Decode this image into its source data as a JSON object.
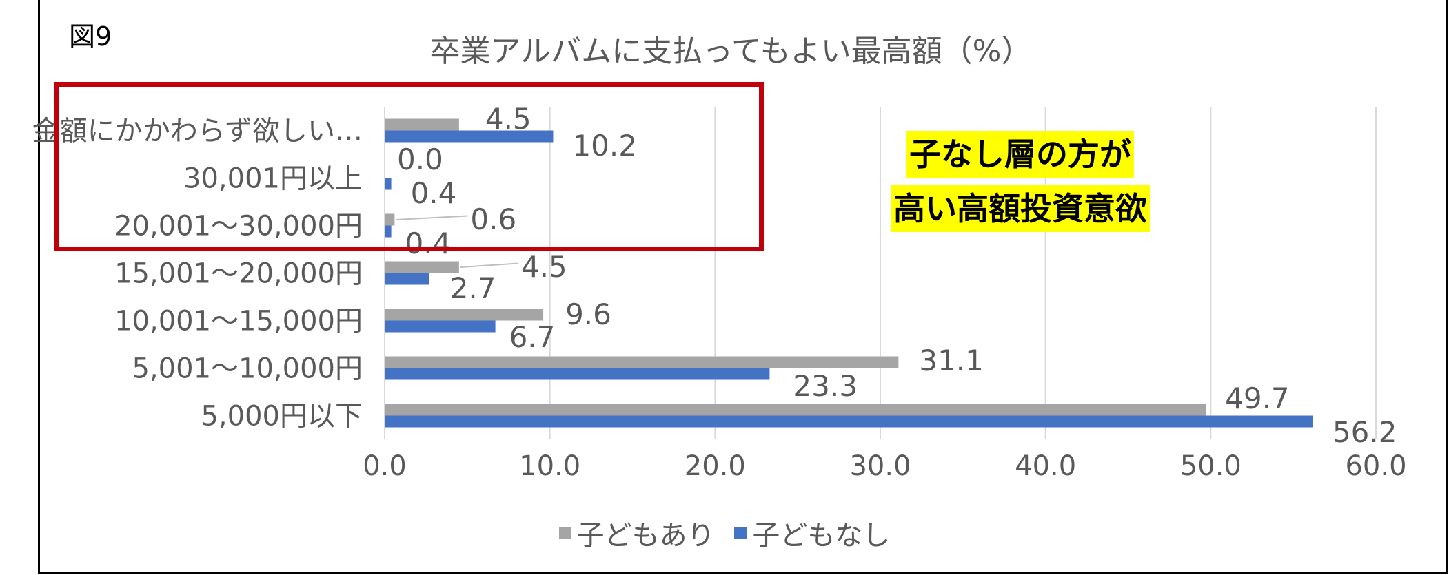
{
  "figure_no": "図9",
  "annotation": {
    "line1": "子なし層の方が",
    "line2": "高い高額投資意欲"
  },
  "colors": {
    "with_children": "#a5a5a5",
    "without_children": "#4472c4",
    "grid": "#d9d9d9",
    "highlight_border": "#c0000b",
    "callout_bg": "#ffff00",
    "text": "#595959"
  },
  "chart_data": {
    "type": "bar",
    "orientation": "horizontal",
    "title": "卒業アルバムに支払ってもよい最高額（%）",
    "categories": [
      "金額にかかわらず欲しい…",
      "30,001円以上",
      "20,001～30,000円",
      "15,001～20,000円",
      "10,001～15,000円",
      "5,001～10,000円",
      "5,000円以下"
    ],
    "series": [
      {
        "name": "子どもあり",
        "values": [
          4.5,
          0.0,
          0.6,
          4.5,
          9.6,
          31.1,
          49.7
        ],
        "labels": [
          "4.5",
          "0.0",
          "0.6",
          "4.5",
          "9.6",
          "31.1",
          "49.7"
        ]
      },
      {
        "name": "子どもなし",
        "values": [
          10.2,
          0.4,
          0.4,
          2.7,
          6.7,
          23.3,
          56.2
        ],
        "labels": [
          "10.2",
          "0.4",
          "0.4",
          "2.7",
          "6.7",
          "23.3",
          "56.2"
        ]
      }
    ],
    "x_ticks": [
      "0.0",
      "10.0",
      "20.0",
      "30.0",
      "40.0",
      "50.0",
      "60.0"
    ],
    "xlim": [
      0,
      60
    ],
    "grid": true,
    "legend_position": "bottom"
  }
}
